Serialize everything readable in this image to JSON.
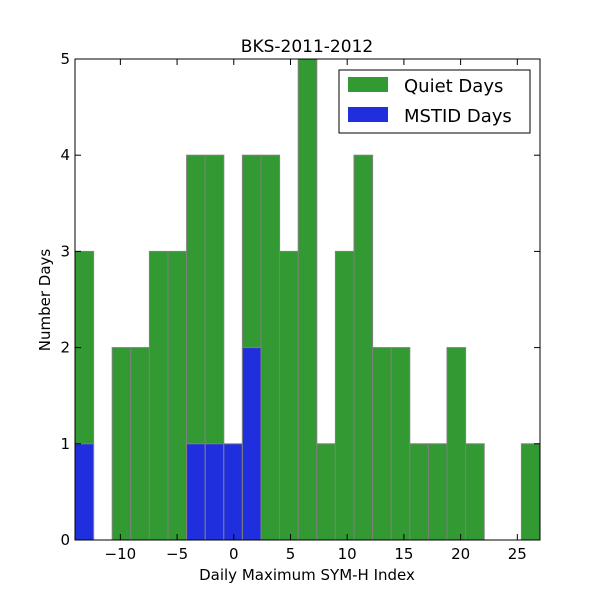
{
  "chart_data": {
    "type": "bar",
    "title": "BKS-2011-2012",
    "xlabel": "Daily Maximum SYM-H Index",
    "ylabel": "Number Days",
    "xlim": [
      -14,
      27
    ],
    "ylim": [
      0,
      5
    ],
    "bin_width": 1.64,
    "bin_starts": [
      -14,
      -12.36,
      -10.72,
      -9.08,
      -7.44,
      -5.8,
      -4.16,
      -2.52,
      -0.88,
      0.76,
      2.4,
      4.04,
      5.68,
      7.32,
      8.96,
      10.6,
      12.24,
      13.88,
      15.52,
      17.16,
      18.8,
      20.44,
      22.08,
      23.72,
      25.36
    ],
    "x_ticks": [
      -10,
      -5,
      0,
      5,
      10,
      15,
      20,
      25
    ],
    "x_tick_labels": [
      "−10",
      "−5",
      "0",
      "5",
      "10",
      "15",
      "20",
      "25"
    ],
    "y_ticks": [
      0,
      1,
      2,
      3,
      4,
      5
    ],
    "y_tick_labels": [
      "0",
      "1",
      "2",
      "3",
      "4",
      "5"
    ],
    "grid": false,
    "legend_position": "top-right",
    "series": [
      {
        "name": "Quiet Days",
        "color": "#339933",
        "values": [
          3,
          0,
          2,
          2,
          3,
          3,
          4,
          4,
          0,
          4,
          4,
          3,
          5,
          1,
          3,
          4,
          2,
          2,
          1,
          1,
          2,
          1,
          0,
          0,
          1
        ]
      },
      {
        "name": "MSTID Days",
        "color": "#1f2fdd",
        "values": [
          1,
          0,
          0,
          0,
          0,
          0,
          1,
          1,
          1,
          2,
          0,
          0,
          0,
          0,
          0,
          0,
          0,
          0,
          0,
          0,
          0,
          0,
          0,
          0,
          0
        ]
      }
    ]
  }
}
